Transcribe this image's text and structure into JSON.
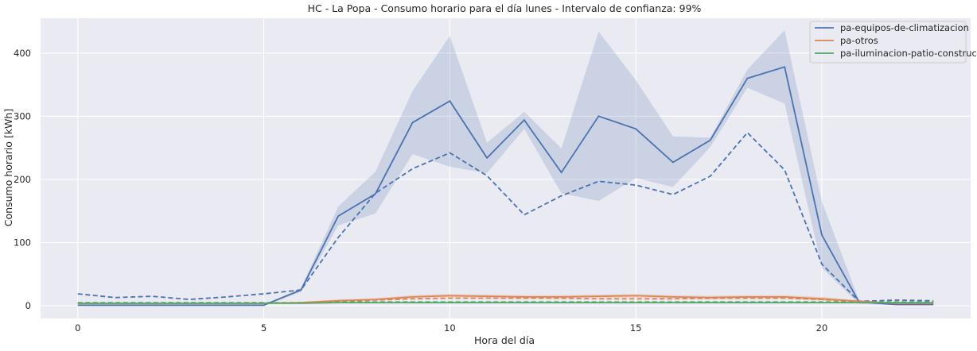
{
  "chart_data": {
    "type": "line",
    "title": "HC - La Popa - Consumo horario para el día lunes - Intervalo de confianza: 99%",
    "xlabel": "Hora del día",
    "ylabel": "Consumo horario [kWh]",
    "xlim": [
      -1,
      24
    ],
    "ylim": [
      -20,
      455
    ],
    "xticks": [
      0,
      5,
      10,
      15,
      20
    ],
    "yticks": [
      0,
      100,
      200,
      300,
      400
    ],
    "grid": true,
    "legend_position": "top-right",
    "background": "#eaeaf2",
    "x": [
      0,
      1,
      2,
      3,
      4,
      5,
      6,
      7,
      8,
      9,
      10,
      11,
      12,
      13,
      14,
      15,
      16,
      17,
      18,
      19,
      20,
      21,
      22,
      23
    ],
    "series": [
      {
        "name": "pa-equipos-de-climatizacion",
        "color": "#4c72b0",
        "values": [
          1,
          1,
          1,
          1,
          1,
          1,
          25,
          142,
          177,
          290,
          324,
          234,
          294,
          211,
          300,
          280,
          227,
          262,
          360,
          378,
          112,
          6,
          2,
          2
        ],
        "ci_lower": [
          0,
          0,
          0,
          0,
          0,
          0,
          22,
          127,
          146,
          240,
          220,
          210,
          280,
          178,
          166,
          202,
          188,
          251,
          345,
          320,
          60,
          3,
          1,
          1
        ],
        "ci_upper": [
          2,
          2,
          2,
          2,
          2,
          2,
          28,
          157,
          212,
          340,
          427,
          258,
          307,
          249,
          434,
          357,
          268,
          266,
          374,
          436,
          165,
          9,
          3,
          3
        ],
        "comparison": [
          19,
          13,
          15,
          10,
          14,
          19,
          25,
          108,
          178,
          217,
          242,
          206,
          144,
          174,
          197,
          191,
          176,
          205,
          274,
          215,
          66,
          7,
          9,
          8
        ]
      },
      {
        "name": "pa-otros",
        "color": "#dd8452",
        "values": [
          4,
          4,
          4,
          4,
          4,
          4,
          5,
          8,
          10,
          14,
          16,
          15,
          14,
          14,
          15,
          16,
          14,
          13,
          14,
          14,
          11,
          7,
          4,
          4
        ],
        "ci_lower": [
          3,
          3,
          3,
          3,
          3,
          3,
          4,
          6,
          8,
          11,
          13,
          12,
          11,
          11,
          12,
          13,
          11,
          10,
          11,
          11,
          8,
          5,
          3,
          3
        ],
        "ci_upper": [
          5,
          5,
          5,
          5,
          5,
          5,
          6,
          10,
          12,
          17,
          19,
          18,
          17,
          17,
          18,
          19,
          17,
          16,
          17,
          17,
          14,
          9,
          5,
          5
        ],
        "comparison": [
          4,
          4,
          4,
          4,
          4,
          4,
          5,
          7,
          9,
          11,
          12,
          12,
          12,
          12,
          11,
          11,
          11,
          12,
          12,
          12,
          10,
          6,
          4,
          4
        ]
      },
      {
        "name": "pa-iluminacion-patio-constructor",
        "color": "#55a868",
        "values": [
          4,
          4,
          4,
          4,
          4,
          4,
          4,
          5,
          5,
          5,
          5,
          5,
          5,
          5,
          5,
          5,
          5,
          5,
          5,
          5,
          5,
          5,
          5,
          5
        ],
        "ci_lower": [
          3,
          3,
          3,
          3,
          3,
          3,
          3,
          4,
          4,
          4,
          4,
          4,
          4,
          4,
          4,
          4,
          4,
          4,
          4,
          4,
          4,
          4,
          4,
          4
        ],
        "ci_upper": [
          5,
          5,
          5,
          5,
          5,
          5,
          5,
          6,
          6,
          6,
          6,
          6,
          6,
          6,
          6,
          6,
          6,
          6,
          6,
          6,
          6,
          6,
          6,
          6
        ],
        "comparison": [
          5,
          5,
          5,
          5,
          5,
          5,
          5,
          6,
          6,
          6,
          6,
          6,
          6,
          6,
          6,
          6,
          6,
          6,
          6,
          6,
          6,
          6,
          6,
          6
        ]
      }
    ]
  }
}
